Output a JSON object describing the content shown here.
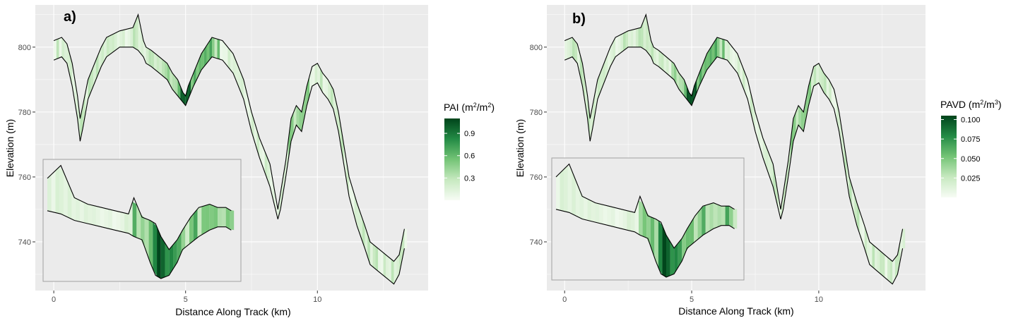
{
  "chart_data": [
    {
      "type": "heatmap",
      "panel_tag": "a)",
      "xlabel": "Distance Along Track (km)",
      "ylabel": "Elevation (m)",
      "x_ticks": [
        0,
        5,
        10
      ],
      "y_ticks": [
        740,
        760,
        780,
        800
      ],
      "xlim": [
        -0.7,
        14.2
      ],
      "ylim": [
        725,
        813
      ],
      "grid": true,
      "legend_position": "right",
      "legend": {
        "title_prefix": "PAI (m",
        "title_sup1": "2",
        "title_mid": "/m",
        "title_sup2": "2",
        "title_suffix": ")",
        "ticks": [
          0.3,
          0.6,
          0.9
        ],
        "tick_labels": [
          "0.3",
          "0.6",
          "0.9"
        ],
        "range": [
          0,
          1.1
        ],
        "colors": [
          "#f7fcf5",
          "#c7e9c0",
          "#74c476",
          "#238b45",
          "#00441b"
        ]
      },
      "terrain": {
        "x": [
          0,
          0.3,
          0.5,
          0.7,
          0.9,
          1.0,
          1.1,
          1.3,
          1.6,
          1.8,
          2.0,
          2.5,
          3.0,
          3.2,
          3.4,
          3.5,
          3.7,
          4.0,
          4.3,
          4.5,
          4.7,
          4.9,
          5.0,
          5.1,
          5.3,
          5.6,
          6.0,
          6.4,
          6.8,
          7.2,
          7.5,
          7.8,
          8.2,
          8.5,
          8.6,
          8.8,
          9.0,
          9.2,
          9.4,
          9.6,
          9.8,
          10.0,
          10.2,
          10.4,
          10.6,
          10.8,
          11.0,
          11.2,
          11.5,
          11.8,
          12.0,
          12.3,
          12.6,
          12.9,
          13.1,
          13.3
        ],
        "top": [
          802,
          803,
          801,
          795,
          785,
          778,
          782,
          790,
          796,
          800,
          803,
          805,
          806,
          810,
          802,
          800,
          799,
          797,
          795,
          792,
          790,
          786,
          785,
          788,
          792,
          798,
          803,
          802,
          798,
          790,
          780,
          772,
          764,
          750,
          755,
          765,
          778,
          782,
          780,
          788,
          794,
          795,
          792,
          790,
          787,
          780,
          770,
          760,
          752,
          745,
          740,
          738,
          736,
          734,
          736,
          744
        ],
        "bottom": [
          796,
          797,
          795,
          788,
          778,
          771,
          775,
          784,
          790,
          794,
          797,
          800,
          800,
          799,
          797,
          795,
          794,
          792,
          790,
          787,
          785,
          783,
          782,
          784,
          788,
          793,
          797,
          796,
          792,
          784,
          774,
          766,
          757,
          747,
          750,
          760,
          771,
          776,
          774,
          782,
          788,
          789,
          786,
          784,
          781,
          774,
          764,
          754,
          745,
          738,
          733,
          731,
          729,
          727,
          730,
          738
        ]
      },
      "highlight": {
        "x_range": [
          4.7,
          5.1
        ],
        "value": 1.0
      },
      "inset": {
        "xlim": [
          0,
          7
        ],
        "ylim": [
          739.5,
          757.5
        ],
        "x": [
          0,
          0.5,
          1.0,
          1.5,
          2.0,
          2.5,
          3.0,
          3.2,
          3.5,
          3.8,
          4.0,
          4.2,
          4.5,
          4.8,
          5.0,
          5.3,
          5.6,
          6.0,
          6.3,
          6.6,
          6.8
        ],
        "top": [
          755,
          757,
          752,
          751,
          750.5,
          750,
          749.5,
          752,
          749,
          748.5,
          748,
          746,
          744,
          745.5,
          747,
          749,
          750.5,
          751,
          750.5,
          750.5,
          750
        ],
        "bottom": [
          750,
          749.5,
          748.5,
          748,
          747.5,
          747,
          746.5,
          746,
          745.5,
          742,
          740,
          739.5,
          740,
          742,
          744,
          745,
          746,
          747,
          747.5,
          747.5,
          747
        ]
      }
    },
    {
      "type": "heatmap",
      "panel_tag": "b)",
      "xlabel": "Distance Along Track (km)",
      "ylabel": "Elevation (m)",
      "x_ticks": [
        0,
        5,
        10
      ],
      "y_ticks": [
        740,
        760,
        780,
        800
      ],
      "xlim": [
        -0.7,
        14.2
      ],
      "ylim": [
        725,
        813
      ],
      "grid": true,
      "legend_position": "right",
      "legend": {
        "title_prefix": "PAVD (m",
        "title_sup1": "2",
        "title_mid": "/m",
        "title_sup2": "3",
        "title_suffix": ")",
        "ticks": [
          0.025,
          0.05,
          0.075,
          0.1
        ],
        "tick_labels": [
          "0.025",
          "0.050",
          "0.075",
          "0.100"
        ],
        "range": [
          0,
          0.105
        ],
        "colors": [
          "#f7fcf5",
          "#c7e9c0",
          "#74c476",
          "#238b45",
          "#00441b"
        ]
      },
      "terrain": {
        "x": [
          0,
          0.3,
          0.5,
          0.7,
          0.9,
          1.0,
          1.1,
          1.3,
          1.6,
          1.8,
          2.0,
          2.5,
          3.0,
          3.2,
          3.4,
          3.5,
          3.7,
          4.0,
          4.3,
          4.5,
          4.7,
          4.9,
          5.0,
          5.1,
          5.3,
          5.6,
          6.0,
          6.4,
          6.8,
          7.2,
          7.5,
          7.8,
          8.2,
          8.5,
          8.6,
          8.8,
          9.0,
          9.2,
          9.4,
          9.6,
          9.8,
          10.0,
          10.2,
          10.4,
          10.6,
          10.8,
          11.0,
          11.2,
          11.5,
          11.8,
          12.0,
          12.3,
          12.6,
          12.9,
          13.1,
          13.3
        ],
        "top": [
          802,
          803,
          801,
          795,
          785,
          778,
          782,
          790,
          796,
          800,
          803,
          805,
          806,
          810,
          802,
          800,
          799,
          797,
          795,
          792,
          790,
          786,
          785,
          788,
          792,
          798,
          803,
          802,
          798,
          790,
          780,
          772,
          764,
          750,
          755,
          765,
          778,
          782,
          780,
          788,
          794,
          795,
          792,
          790,
          787,
          780,
          770,
          760,
          752,
          745,
          740,
          738,
          736,
          734,
          736,
          744
        ],
        "bottom": [
          796,
          797,
          795,
          788,
          778,
          771,
          775,
          784,
          790,
          794,
          797,
          800,
          800,
          799,
          797,
          795,
          794,
          792,
          790,
          787,
          785,
          783,
          782,
          784,
          788,
          793,
          797,
          796,
          792,
          784,
          774,
          766,
          757,
          747,
          750,
          760,
          771,
          776,
          774,
          782,
          788,
          789,
          786,
          784,
          781,
          774,
          764,
          754,
          745,
          738,
          733,
          731,
          729,
          727,
          730,
          738
        ]
      },
      "highlight": {
        "x_range": [
          4.7,
          5.1
        ],
        "value": 0.1
      },
      "inset": {
        "xlim": [
          0,
          7
        ],
        "ylim": [
          739.5,
          757.5
        ],
        "x": [
          0,
          0.5,
          1.0,
          1.5,
          2.0,
          2.5,
          3.0,
          3.2,
          3.5,
          3.8,
          4.0,
          4.2,
          4.5,
          4.8,
          5.0,
          5.3,
          5.6,
          6.0,
          6.3,
          6.6,
          6.8
        ],
        "top": [
          755,
          757,
          752,
          751,
          750.5,
          750,
          749.5,
          752,
          749,
          748.5,
          748,
          746,
          744,
          745.5,
          747,
          749,
          750.5,
          751,
          750.5,
          750.5,
          750
        ],
        "bottom": [
          750,
          749.5,
          748.5,
          748,
          747.5,
          747,
          746.5,
          746,
          745.5,
          742,
          740,
          739.5,
          740,
          742,
          744,
          745,
          746,
          747,
          747.5,
          747.5,
          747
        ]
      }
    }
  ]
}
